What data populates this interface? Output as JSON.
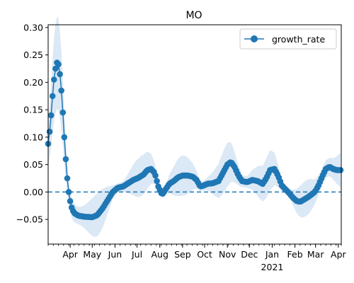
{
  "chart_data": {
    "type": "line",
    "title": "MO",
    "xlabel": "",
    "ylabel": "",
    "ylim": [
      -0.095,
      0.305
    ],
    "xlim": [
      "2020-03-02",
      "2021-04-05"
    ],
    "x_ticks": [
      {
        "date": "2020-04-01",
        "label": "Apr"
      },
      {
        "date": "2020-05-01",
        "label": "May"
      },
      {
        "date": "2020-06-01",
        "label": "Jun"
      },
      {
        "date": "2020-07-01",
        "label": "Jul"
      },
      {
        "date": "2020-08-01",
        "label": "Aug"
      },
      {
        "date": "2020-09-01",
        "label": "Sep"
      },
      {
        "date": "2020-10-01",
        "label": "Oct"
      },
      {
        "date": "2020-11-01",
        "label": "Nov"
      },
      {
        "date": "2020-12-01",
        "label": "Dec"
      },
      {
        "date": "2021-01-01",
        "label": "Jan"
      },
      {
        "date": "2021-02-01",
        "label": "Feb"
      },
      {
        "date": "2021-03-01",
        "label": "Mar"
      },
      {
        "date": "2021-04-01",
        "label": "Apr"
      }
    ],
    "x_year_label": {
      "date": "2021-01-01",
      "label": "2021"
    },
    "y_ticks": [
      -0.05,
      0.0,
      0.05,
      0.1,
      0.15,
      0.2,
      0.25,
      0.3
    ],
    "y_tick_labels": [
      "−0.05",
      "0.00",
      "0.05",
      "0.10",
      "0.15",
      "0.20",
      "0.25",
      "0.30"
    ],
    "reference_line": {
      "y": 0.0,
      "style": "dashed",
      "color": "#1f77b4"
    },
    "legend": {
      "position": "top-right",
      "entries": [
        "growth_rate"
      ]
    },
    "grid": false,
    "colors": {
      "series": "#1f77b4",
      "band": "#dbe8f5"
    },
    "series": [
      {
        "name": "growth_rate",
        "marker": "circle",
        "points": [
          [
            "2020-03-02",
            0.088
          ],
          [
            "2020-03-04",
            0.11
          ],
          [
            "2020-03-06",
            0.14
          ],
          [
            "2020-03-08",
            0.175
          ],
          [
            "2020-03-10",
            0.205
          ],
          [
            "2020-03-12",
            0.225
          ],
          [
            "2020-03-14",
            0.236
          ],
          [
            "2020-03-16",
            0.233
          ],
          [
            "2020-03-18",
            0.215
          ],
          [
            "2020-03-20",
            0.185
          ],
          [
            "2020-03-22",
            0.145
          ],
          [
            "2020-03-24",
            0.1
          ],
          [
            "2020-03-26",
            0.06
          ],
          [
            "2020-03-28",
            0.025
          ],
          [
            "2020-03-30",
            0.0
          ],
          [
            "2020-04-02",
            -0.025
          ],
          [
            "2020-04-06",
            -0.038
          ],
          [
            "2020-04-12",
            -0.043
          ],
          [
            "2020-04-20",
            -0.045
          ],
          [
            "2020-05-01",
            -0.046
          ],
          [
            "2020-05-08",
            -0.042
          ],
          [
            "2020-05-15",
            -0.03
          ],
          [
            "2020-05-22",
            -0.015
          ],
          [
            "2020-05-29",
            0.0
          ],
          [
            "2020-06-05",
            0.008
          ],
          [
            "2020-06-12",
            0.01
          ],
          [
            "2020-06-19",
            0.016
          ],
          [
            "2020-06-26",
            0.022
          ],
          [
            "2020-07-03",
            0.026
          ],
          [
            "2020-07-10",
            0.032
          ],
          [
            "2020-07-15",
            0.04
          ],
          [
            "2020-07-20",
            0.042
          ],
          [
            "2020-07-25",
            0.035
          ],
          [
            "2020-07-30",
            0.01
          ],
          [
            "2020-08-04",
            -0.005
          ],
          [
            "2020-08-09",
            0.005
          ],
          [
            "2020-08-14",
            0.015
          ],
          [
            "2020-08-20",
            0.02
          ],
          [
            "2020-08-26",
            0.027
          ],
          [
            "2020-09-01",
            0.03
          ],
          [
            "2020-09-08",
            0.03
          ],
          [
            "2020-09-15",
            0.028
          ],
          [
            "2020-09-20",
            0.022
          ],
          [
            "2020-09-25",
            0.01
          ],
          [
            "2020-09-30",
            0.012
          ],
          [
            "2020-10-05",
            0.015
          ],
          [
            "2020-10-12",
            0.016
          ],
          [
            "2020-10-20",
            0.02
          ],
          [
            "2020-10-26",
            0.035
          ],
          [
            "2020-11-01",
            0.05
          ],
          [
            "2020-11-06",
            0.055
          ],
          [
            "2020-11-11",
            0.045
          ],
          [
            "2020-11-16",
            0.03
          ],
          [
            "2020-11-21",
            0.02
          ],
          [
            "2020-11-28",
            0.018
          ],
          [
            "2020-12-05",
            0.022
          ],
          [
            "2020-12-12",
            0.02
          ],
          [
            "2020-12-19",
            0.015
          ],
          [
            "2020-12-24",
            0.025
          ],
          [
            "2020-12-29",
            0.04
          ],
          [
            "2021-01-04",
            0.042
          ],
          [
            "2021-01-09",
            0.03
          ],
          [
            "2021-01-14",
            0.012
          ],
          [
            "2021-01-19",
            0.005
          ],
          [
            "2021-01-24",
            -0.002
          ],
          [
            "2021-01-29",
            -0.01
          ],
          [
            "2021-02-03",
            -0.016
          ],
          [
            "2021-02-08",
            -0.018
          ],
          [
            "2021-02-13",
            -0.014
          ],
          [
            "2021-02-18",
            -0.01
          ],
          [
            "2021-02-23",
            -0.005
          ],
          [
            "2021-02-28",
            0.0
          ],
          [
            "2021-03-05",
            0.012
          ],
          [
            "2021-03-10",
            0.028
          ],
          [
            "2021-03-15",
            0.042
          ],
          [
            "2021-03-20",
            0.046
          ],
          [
            "2021-03-25",
            0.042
          ],
          [
            "2021-03-30",
            0.04
          ],
          [
            "2021-04-05",
            0.04
          ]
        ]
      }
    ]
  }
}
